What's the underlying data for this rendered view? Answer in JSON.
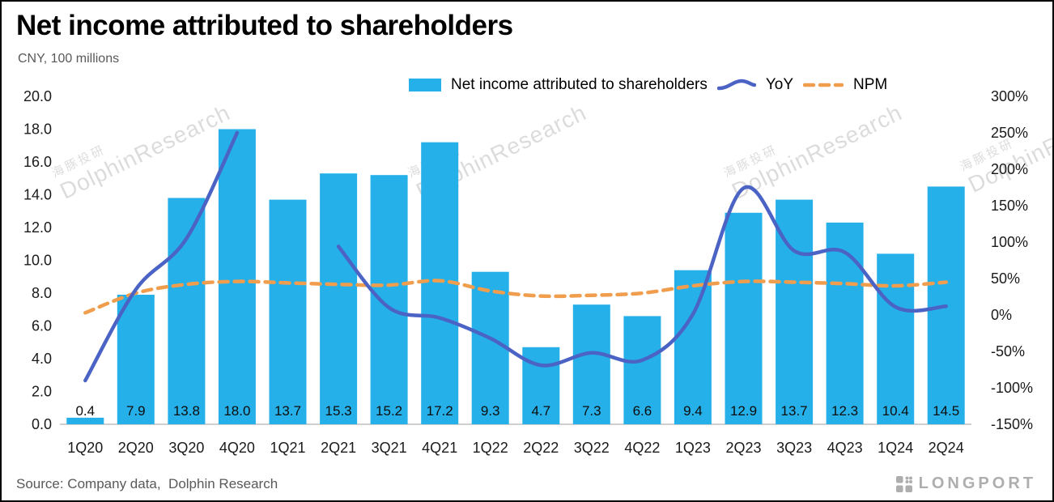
{
  "header": {
    "title": "Net income attributed to shareholders",
    "subtitle": "CNY, 100 millions"
  },
  "legend": [
    {
      "type": "bar",
      "label": "Net income attributed to shareholders"
    },
    {
      "type": "line",
      "label": "YoY"
    },
    {
      "type": "dashed-line",
      "label": "NPM"
    }
  ],
  "footer": {
    "source": "Source: Company data,  Dolphin Research",
    "brand": "LONGPORT"
  },
  "watermark": {
    "cjk": "海豚投研",
    "latin": "DolphinResearch"
  },
  "colors": {
    "bar": "#26b0e9",
    "yoy": "#4a63c4",
    "npm": "#f09e4e",
    "axis_line": "#bfbfbf"
  },
  "chart_data": {
    "type": "bar",
    "title": "Net income attributed to shareholders",
    "subtitle": "CNY, 100 millions",
    "legend_position": "top",
    "grid": false,
    "categories": [
      "1Q20",
      "2Q20",
      "3Q20",
      "4Q20",
      "1Q21",
      "2Q21",
      "3Q21",
      "4Q21",
      "1Q22",
      "2Q22",
      "3Q22",
      "4Q22",
      "1Q23",
      "2Q23",
      "3Q23",
      "4Q23",
      "1Q24",
      "2Q24"
    ],
    "bar_labels": [
      "0.4",
      "7.9",
      "13.8",
      "18.0",
      "13.7",
      "15.3",
      "15.2",
      "17.2",
      "9.3",
      "4.7",
      "7.3",
      "6.6",
      "9.4",
      "12.9",
      "13.7",
      "12.3",
      "10.4",
      "14.5"
    ],
    "series": [
      {
        "name": "Net income attributed to shareholders",
        "type": "bar",
        "axis": "left",
        "values": [
          0.4,
          7.9,
          13.8,
          18.0,
          13.7,
          15.3,
          15.2,
          17.2,
          9.3,
          4.7,
          7.3,
          6.6,
          9.4,
          12.9,
          13.7,
          12.3,
          10.4,
          14.5
        ]
      },
      {
        "name": "YoY",
        "type": "line",
        "axis": "right",
        "values_pct": [
          -90,
          35,
          105,
          250,
          null,
          94,
          10,
          -4,
          -32,
          -69,
          -52,
          -62,
          1,
          174,
          88,
          86,
          11,
          12
        ]
      },
      {
        "name": "NPM",
        "type": "dashed-line",
        "axis": "right",
        "values_pct": [
          3,
          30,
          42,
          46,
          44,
          42,
          41,
          47,
          33,
          26,
          27,
          30,
          40,
          46,
          45,
          43,
          40,
          45
        ]
      }
    ],
    "yaxis_left": {
      "min": 0,
      "max": 20,
      "step": 2,
      "ticks": [
        "0.0",
        "2.0",
        "4.0",
        "6.0",
        "8.0",
        "10.0",
        "12.0",
        "14.0",
        "16.0",
        "18.0",
        "20.0"
      ]
    },
    "yaxis_right": {
      "min": -150,
      "max": 300,
      "step": 50,
      "ticks": [
        "300%",
        "250%",
        "200%",
        "150%",
        "100%",
        "50%",
        "0%",
        "-50%",
        "-100%",
        "-150%"
      ]
    }
  }
}
